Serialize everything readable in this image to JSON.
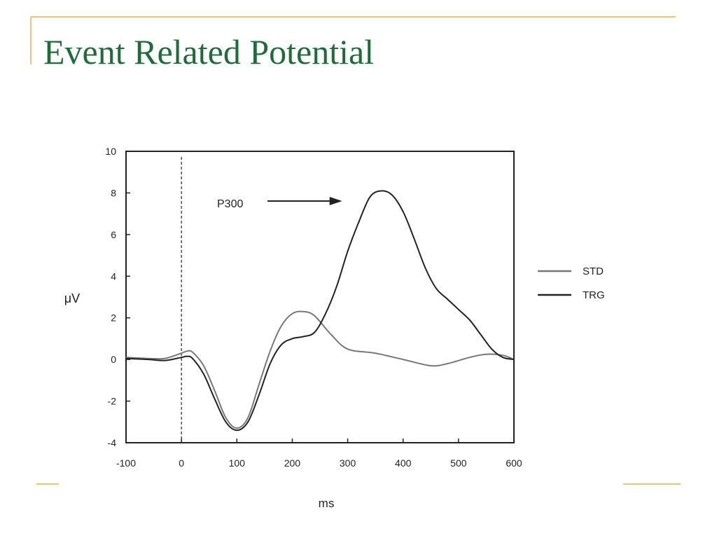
{
  "slide": {
    "title": "Event Related Potential",
    "title_color": "#1F6B3A",
    "accent_color": "#E3B14A"
  },
  "chart_data": {
    "type": "line",
    "xlabel": "ms",
    "ylabel": "μV",
    "xlim": [
      -100,
      600
    ],
    "ylim": [
      -4,
      10
    ],
    "xticks": [
      -100,
      0,
      100,
      200,
      300,
      400,
      500,
      600
    ],
    "yticks": [
      -4,
      -2,
      0,
      2,
      4,
      6,
      8,
      10
    ],
    "grid": false,
    "legend_position": "right",
    "reference_line": {
      "x": 0,
      "style": "dashed"
    },
    "annotations": [
      {
        "text": "P300",
        "arrow_to": [
          290,
          7.5
        ]
      }
    ],
    "series": [
      {
        "name": "STD",
        "color": "#777777",
        "x": [
          -100,
          -60,
          -30,
          0,
          10,
          20,
          40,
          60,
          80,
          100,
          120,
          140,
          160,
          180,
          200,
          220,
          240,
          270,
          300,
          350,
          400,
          450,
          480,
          520,
          550,
          580,
          600
        ],
        "y": [
          0.1,
          0.05,
          0.05,
          0.3,
          0.4,
          0.35,
          -0.3,
          -1.5,
          -2.8,
          -3.3,
          -2.8,
          -1.2,
          0.4,
          1.6,
          2.2,
          2.3,
          2.1,
          1.2,
          0.5,
          0.3,
          0.0,
          -0.3,
          -0.2,
          0.1,
          0.25,
          0.2,
          0.0
        ]
      },
      {
        "name": "TRG",
        "color": "#222222",
        "x": [
          -100,
          -60,
          -30,
          0,
          10,
          20,
          40,
          60,
          80,
          100,
          120,
          140,
          160,
          180,
          200,
          220,
          240,
          260,
          280,
          300,
          320,
          340,
          360,
          380,
          400,
          420,
          440,
          460,
          480,
          500,
          520,
          540,
          560,
          580,
          600
        ],
        "y": [
          0.05,
          0.0,
          -0.05,
          0.1,
          0.15,
          0.05,
          -0.7,
          -1.9,
          -3.0,
          -3.4,
          -3.0,
          -1.7,
          -0.2,
          0.7,
          1.0,
          1.1,
          1.3,
          2.2,
          3.5,
          5.2,
          6.6,
          7.8,
          8.1,
          7.9,
          7.1,
          5.8,
          4.4,
          3.4,
          2.9,
          2.4,
          1.9,
          1.2,
          0.5,
          0.1,
          0.0
        ]
      }
    ]
  }
}
